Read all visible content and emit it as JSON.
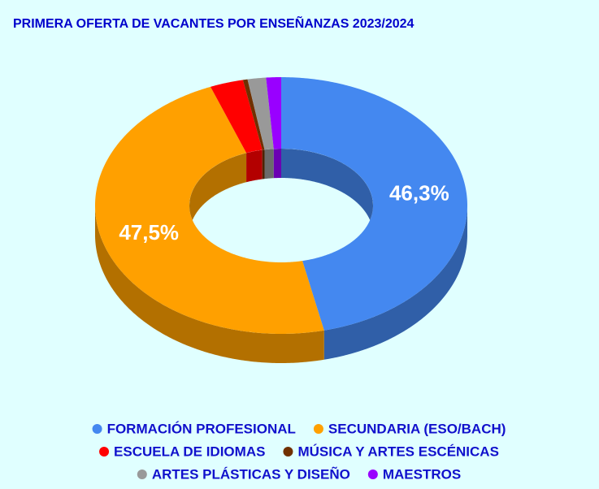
{
  "chart_data": {
    "type": "pie",
    "donut": true,
    "three_d": true,
    "title": "PRIMERA OFERTA DE VACANTES POR ENSEÑANZAS 2023/2024",
    "categories": [
      "FORMACIÓN PROFESIONAL",
      "SECUNDARIA (ESO/BACH)",
      "ESCUELA DE IDIOMAS",
      "MÚSICA Y ARTES ESCÉNICAS",
      "ARTES PLÁSTICAS Y DISEÑO",
      "MAESTROS"
    ],
    "values": [
      46.3,
      47.5,
      2.9,
      0.4,
      1.6,
      1.3
    ],
    "value_labels": [
      "46,3%",
      "47,5%",
      null,
      null,
      null,
      null
    ],
    "colors": [
      "#4488f0",
      "#ffa000",
      "#ff0000",
      "#703000",
      "#999999",
      "#9900ff"
    ],
    "legend": "bottom"
  }
}
